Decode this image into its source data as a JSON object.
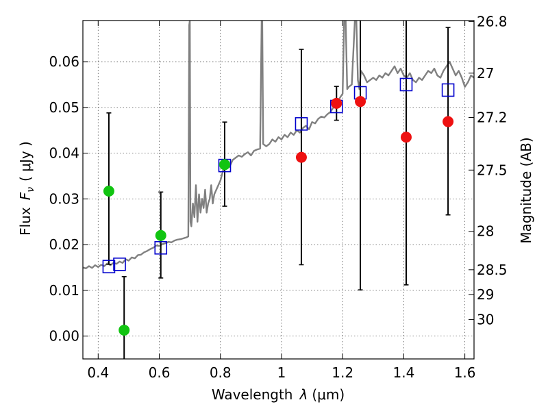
{
  "chart_data": {
    "type": "scatter",
    "xlabel_text": "Wavelength",
    "xlabel_symbol": "λ",
    "xlabel_unit": "(μm)",
    "ylabel_text": "Flux",
    "ylabel_symbol": "F",
    "ylabel_sub": "ν",
    "ylabel_unit": "( μJy )",
    "y2label": "Magnitude (AB)",
    "xlim": [
      0.35,
      1.63
    ],
    "ylim": [
      -0.005,
      0.069
    ],
    "grid": true,
    "x_ticks": [
      {
        "value": 0.4,
        "label": "0.4"
      },
      {
        "value": 0.6,
        "label": "0.6"
      },
      {
        "value": 0.8,
        "label": "0.8"
      },
      {
        "value": 1.0,
        "label": "1"
      },
      {
        "value": 1.2,
        "label": "1.2"
      },
      {
        "value": 1.4,
        "label": "1.4"
      },
      {
        "value": 1.6,
        "label": "1.6"
      }
    ],
    "y_ticks": [
      {
        "value": 0.0,
        "label": "0.00"
      },
      {
        "value": 0.01,
        "label": "0.01"
      },
      {
        "value": 0.02,
        "label": "0.02"
      },
      {
        "value": 0.03,
        "label": "0.03"
      },
      {
        "value": 0.04,
        "label": "0.04"
      },
      {
        "value": 0.05,
        "label": "0.05"
      },
      {
        "value": 0.06,
        "label": "0.06"
      }
    ],
    "mag_ticks": [
      {
        "value": 0.0688,
        "label": "26.8"
      },
      {
        "value": 0.0575,
        "label": "27"
      },
      {
        "value": 0.0478,
        "label": "27.2"
      },
      {
        "value": 0.0363,
        "label": "27.5"
      },
      {
        "value": 0.0229,
        "label": "28"
      },
      {
        "value": 0.0145,
        "label": "28.5"
      },
      {
        "value": 0.0091,
        "label": "29"
      },
      {
        "value": 0.0036,
        "label": "30"
      }
    ],
    "spectrum": {
      "name": "model spectrum",
      "color": "#808080",
      "points": [
        [
          0.35,
          0.015
        ],
        [
          0.36,
          0.0148
        ],
        [
          0.37,
          0.0153
        ],
        [
          0.38,
          0.0149
        ],
        [
          0.39,
          0.0155
        ],
        [
          0.4,
          0.0151
        ],
        [
          0.41,
          0.0156
        ],
        [
          0.42,
          0.0153
        ],
        [
          0.43,
          0.0159
        ],
        [
          0.44,
          0.0155
        ],
        [
          0.45,
          0.016
        ],
        [
          0.46,
          0.0158
        ],
        [
          0.47,
          0.0163
        ],
        [
          0.48,
          0.016
        ],
        [
          0.49,
          0.0168
        ],
        [
          0.5,
          0.0165
        ],
        [
          0.51,
          0.0172
        ],
        [
          0.52,
          0.017
        ],
        [
          0.53,
          0.0177
        ],
        [
          0.54,
          0.0178
        ],
        [
          0.55,
          0.0183
        ],
        [
          0.56,
          0.0186
        ],
        [
          0.57,
          0.019
        ],
        [
          0.58,
          0.0193
        ],
        [
          0.59,
          0.0198
        ],
        [
          0.6,
          0.0197
        ],
        [
          0.61,
          0.0201
        ],
        [
          0.62,
          0.0203
        ],
        [
          0.63,
          0.0206
        ],
        [
          0.64,
          0.0205
        ],
        [
          0.65,
          0.0209
        ],
        [
          0.66,
          0.0211
        ],
        [
          0.67,
          0.0212
        ],
        [
          0.68,
          0.0214
        ],
        [
          0.69,
          0.0216
        ],
        [
          0.695,
          0.0218
        ],
        [
          0.698,
          0.068
        ],
        [
          0.7,
          0.069
        ],
        [
          0.702,
          0.025
        ],
        [
          0.705,
          0.024
        ],
        [
          0.71,
          0.029
        ],
        [
          0.715,
          0.026
        ],
        [
          0.72,
          0.033
        ],
        [
          0.725,
          0.025
        ],
        [
          0.73,
          0.031
        ],
        [
          0.735,
          0.027
        ],
        [
          0.74,
          0.03
        ],
        [
          0.745,
          0.028
        ],
        [
          0.75,
          0.032
        ],
        [
          0.755,
          0.027
        ],
        [
          0.76,
          0.029
        ],
        [
          0.765,
          0.03
        ],
        [
          0.77,
          0.033
        ],
        [
          0.775,
          0.029
        ],
        [
          0.78,
          0.031
        ],
        [
          0.79,
          0.0325
        ],
        [
          0.8,
          0.034
        ],
        [
          0.81,
          0.0365
        ],
        [
          0.82,
          0.038
        ],
        [
          0.83,
          0.037
        ],
        [
          0.84,
          0.0385
        ],
        [
          0.85,
          0.039
        ],
        [
          0.86,
          0.0395
        ],
        [
          0.87,
          0.0392
        ],
        [
          0.88,
          0.0398
        ],
        [
          0.89,
          0.0402
        ],
        [
          0.9,
          0.0395
        ],
        [
          0.91,
          0.0405
        ],
        [
          0.92,
          0.0408
        ],
        [
          0.93,
          0.041
        ],
        [
          0.935,
          0.069
        ],
        [
          0.937,
          0.069
        ],
        [
          0.94,
          0.042
        ],
        [
          0.95,
          0.0415
        ],
        [
          0.96,
          0.042
        ],
        [
          0.97,
          0.043
        ],
        [
          0.98,
          0.0425
        ],
        [
          0.99,
          0.0435
        ],
        [
          1.0,
          0.043
        ],
        [
          1.01,
          0.044
        ],
        [
          1.02,
          0.0435
        ],
        [
          1.03,
          0.0445
        ],
        [
          1.04,
          0.044
        ],
        [
          1.05,
          0.045
        ],
        [
          1.06,
          0.0445
        ],
        [
          1.07,
          0.0455
        ],
        [
          1.08,
          0.046
        ],
        [
          1.09,
          0.0452
        ],
        [
          1.1,
          0.0468
        ],
        [
          1.11,
          0.0465
        ],
        [
          1.12,
          0.0475
        ],
        [
          1.13,
          0.048
        ],
        [
          1.14,
          0.0478
        ],
        [
          1.15,
          0.0485
        ],
        [
          1.16,
          0.049
        ],
        [
          1.17,
          0.05
        ],
        [
          1.18,
          0.0505
        ],
        [
          1.19,
          0.052
        ],
        [
          1.2,
          0.053
        ],
        [
          1.205,
          0.069
        ],
        [
          1.21,
          0.069
        ],
        [
          1.215,
          0.054
        ],
        [
          1.22,
          0.0545
        ],
        [
          1.23,
          0.055
        ],
        [
          1.24,
          0.069
        ],
        [
          1.245,
          0.069
        ],
        [
          1.25,
          0.056
        ],
        [
          1.255,
          0.054
        ],
        [
          1.26,
          0.058
        ],
        [
          1.27,
          0.057
        ],
        [
          1.28,
          0.0555
        ],
        [
          1.29,
          0.056
        ],
        [
          1.3,
          0.0565
        ],
        [
          1.31,
          0.056
        ],
        [
          1.32,
          0.057
        ],
        [
          1.33,
          0.0565
        ],
        [
          1.34,
          0.0575
        ],
        [
          1.35,
          0.057
        ],
        [
          1.36,
          0.058
        ],
        [
          1.37,
          0.059
        ],
        [
          1.38,
          0.0575
        ],
        [
          1.39,
          0.0585
        ],
        [
          1.4,
          0.057
        ],
        [
          1.41,
          0.0565
        ],
        [
          1.42,
          0.0575
        ],
        [
          1.43,
          0.056
        ],
        [
          1.44,
          0.0555
        ],
        [
          1.45,
          0.0565
        ],
        [
          1.46,
          0.056
        ],
        [
          1.47,
          0.057
        ],
        [
          1.48,
          0.058
        ],
        [
          1.49,
          0.0575
        ],
        [
          1.5,
          0.0585
        ],
        [
          1.51,
          0.057
        ],
        [
          1.52,
          0.0565
        ],
        [
          1.53,
          0.058
        ],
        [
          1.54,
          0.059
        ],
        [
          1.55,
          0.06
        ],
        [
          1.56,
          0.0585
        ],
        [
          1.57,
          0.057
        ],
        [
          1.58,
          0.058
        ],
        [
          1.59,
          0.0565
        ],
        [
          1.6,
          0.0545
        ],
        [
          1.61,
          0.0555
        ],
        [
          1.62,
          0.057
        ],
        [
          1.63,
          0.0565
        ]
      ]
    },
    "errorbars": [
      {
        "x": 0.435,
        "low": 0.0157,
        "high": 0.0488
      },
      {
        "x": 0.485,
        "low": -0.006,
        "high": 0.013
      },
      {
        "x": 0.605,
        "low": 0.0127,
        "high": 0.0315
      },
      {
        "x": 0.814,
        "low": 0.0284,
        "high": 0.0468
      },
      {
        "x": 1.065,
        "low": 0.0156,
        "high": 0.0627
      },
      {
        "x": 1.18,
        "low": 0.0472,
        "high": 0.0546
      },
      {
        "x": 1.258,
        "low": 0.0101,
        "high": 0.07
      },
      {
        "x": 1.408,
        "low": 0.0112,
        "high": 0.07
      },
      {
        "x": 1.545,
        "low": 0.0265,
        "high": 0.0675
      }
    ],
    "series": [
      {
        "name": "green photometry",
        "color": "#11c411",
        "marker": "circle",
        "points": [
          [
            0.435,
            0.0317
          ],
          [
            0.485,
            0.0013
          ],
          [
            0.605,
            0.022
          ],
          [
            0.814,
            0.0375
          ]
        ]
      },
      {
        "name": "red photometry",
        "color": "#ee1111",
        "marker": "circle",
        "points": [
          [
            1.065,
            0.0391
          ],
          [
            1.18,
            0.0509
          ],
          [
            1.258,
            0.0513
          ],
          [
            1.408,
            0.0435
          ],
          [
            1.545,
            0.0469
          ]
        ]
      },
      {
        "name": "model synthetic photometry",
        "color": "#0000cc",
        "marker": "square",
        "points": [
          [
            0.435,
            0.0152
          ],
          [
            0.47,
            0.0157
          ],
          [
            0.605,
            0.0193
          ],
          [
            0.814,
            0.0373
          ],
          [
            1.065,
            0.0464
          ],
          [
            1.18,
            0.0502
          ],
          [
            1.258,
            0.0532
          ],
          [
            1.408,
            0.055
          ],
          [
            1.545,
            0.0538
          ]
        ]
      }
    ]
  }
}
